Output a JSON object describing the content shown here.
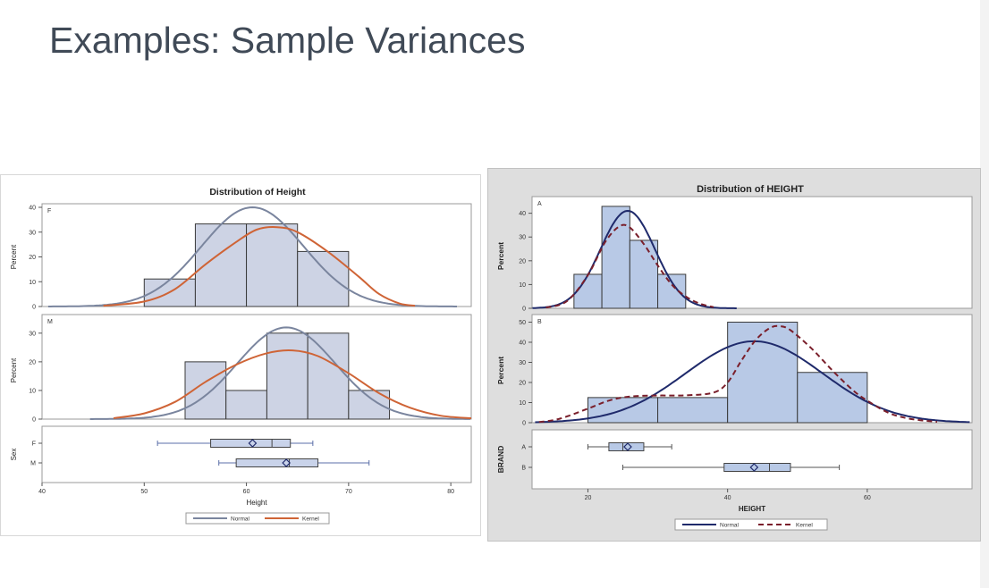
{
  "slide": {
    "title": "Examples: Sample Variances"
  },
  "chart_data": [
    {
      "type": "histogram",
      "title": "Distribution of Height",
      "xlabel": "Height",
      "xlim": [
        40,
        82
      ],
      "xticks": [
        40,
        50,
        60,
        70,
        80
      ],
      "class_label": "Sex",
      "panels": [
        {
          "group": "F",
          "ylabel": "Percent",
          "ylim": [
            0,
            40
          ],
          "yticks": [
            0,
            10,
            20,
            30,
            40
          ],
          "bins": [
            {
              "x0": 50,
              "x1": 55,
              "percent": 11.1
            },
            {
              "x0": 55,
              "x1": 60,
              "percent": 33.3
            },
            {
              "x0": 60,
              "x1": 65,
              "percent": 33.3
            },
            {
              "x0": 65,
              "x1": 70,
              "percent": 22.2
            }
          ],
          "normal": {
            "mean": 60.6,
            "sd": 5.0,
            "peak": 40
          },
          "kernel": [
            [
              46,
              0.3
            ],
            [
              50,
              2
            ],
            [
              53,
              7
            ],
            [
              56,
              17
            ],
            [
              59,
              26
            ],
            [
              61,
              31
            ],
            [
              63,
              32
            ],
            [
              65,
              30
            ],
            [
              68,
              22
            ],
            [
              71,
              12
            ],
            [
              73,
              5
            ],
            [
              75,
              1.2
            ],
            [
              76.5,
              0.3
            ]
          ]
        },
        {
          "group": "M",
          "ylabel": "Percent",
          "ylim": [
            0,
            34
          ],
          "yticks": [
            0,
            10,
            20,
            30
          ],
          "bins": [
            {
              "x0": 54,
              "x1": 58,
              "percent": 20
            },
            {
              "x0": 58,
              "x1": 62,
              "percent": 10
            },
            {
              "x0": 62,
              "x1": 66,
              "percent": 30
            },
            {
              "x0": 66,
              "x1": 70,
              "percent": 30
            },
            {
              "x0": 70,
              "x1": 74,
              "percent": 10
            }
          ],
          "normal": {
            "mean": 63.9,
            "sd": 4.8,
            "peak": 32
          },
          "kernel": [
            [
              47,
              0.3
            ],
            [
              50,
              2
            ],
            [
              53,
              6
            ],
            [
              56,
              13
            ],
            [
              59,
              19
            ],
            [
              62,
              23
            ],
            [
              64.5,
              24
            ],
            [
              67,
              22
            ],
            [
              70,
              16
            ],
            [
              73,
              9
            ],
            [
              76,
              4
            ],
            [
              79,
              1.2
            ],
            [
              82,
              0.3
            ]
          ]
        }
      ],
      "boxplots": [
        {
          "group": "F",
          "min": 51.3,
          "q1": 56.5,
          "median": 62.5,
          "q3": 64.3,
          "max": 66.5,
          "mean": 60.6
        },
        {
          "group": "M",
          "min": 57.3,
          "q1": 59.0,
          "median": 64.2,
          "q3": 67.0,
          "max": 72.0,
          "mean": 63.9
        }
      ],
      "legend": [
        {
          "name": "Normal",
          "color": "#7a859e"
        },
        {
          "name": "Kernel",
          "color": "#cf6436"
        }
      ],
      "colors": {
        "bar": "#cdd3e4",
        "bar_edge": "#3a3a3a",
        "normal": "#7a859e",
        "kernel": "#cf6436",
        "box": "#c9d3ea",
        "whisker": "#5b6fa8"
      }
    },
    {
      "type": "histogram",
      "title": "Distribution of HEIGHT",
      "xlabel": "HEIGHT",
      "xlim": [
        12,
        75
      ],
      "xticks": [
        20,
        40,
        60
      ],
      "class_label": "BRAND",
      "panels": [
        {
          "group": "A",
          "ylabel": "Percent",
          "ylim": [
            0,
            44
          ],
          "yticks": [
            0,
            10,
            20,
            30,
            40
          ],
          "bins": [
            {
              "x0": 18,
              "x1": 22,
              "percent": 14.3
            },
            {
              "x0": 22,
              "x1": 26,
              "percent": 42.9
            },
            {
              "x0": 26,
              "x1": 30,
              "percent": 28.6
            },
            {
              "x0": 30,
              "x1": 34,
              "percent": 14.3
            }
          ],
          "normal": {
            "mean": 25.7,
            "sd": 3.9,
            "peak": 41
          },
          "kernel": [
            [
              14,
              0.3
            ],
            [
              17,
              3
            ],
            [
              20,
              14
            ],
            [
              22.5,
              28
            ],
            [
              24.5,
              34.5
            ],
            [
              26,
              34
            ],
            [
              28,
              27
            ],
            [
              30,
              18
            ],
            [
              32,
              10
            ],
            [
              34,
              5
            ],
            [
              36,
              2
            ],
            [
              38,
              0.5
            ]
          ]
        },
        {
          "group": "B",
          "ylabel": "Percent",
          "ylim": [
            0,
            52
          ],
          "yticks": [
            0,
            10,
            20,
            30,
            40,
            50
          ],
          "bins": [
            {
              "x0": 20,
              "x1": 30,
              "percent": 12.5
            },
            {
              "x0": 30,
              "x1": 40,
              "percent": 12.5
            },
            {
              "x0": 40,
              "x1": 50,
              "percent": 50
            },
            {
              "x0": 50,
              "x1": 60,
              "percent": 25
            }
          ],
          "normal": {
            "mean": 43.8,
            "sd": 9.8,
            "peak": 40.5
          },
          "kernel": [
            [
              13,
              0.3
            ],
            [
              16,
              2
            ],
            [
              20,
              7
            ],
            [
              23,
              11
            ],
            [
              26,
              13
            ],
            [
              30,
              13.5
            ],
            [
              34,
              13.6
            ],
            [
              38,
              15
            ],
            [
              40,
              20
            ],
            [
              42,
              31
            ],
            [
              44,
              41
            ],
            [
              46,
              47
            ],
            [
              47.5,
              48
            ],
            [
              49,
              46
            ],
            [
              52,
              37
            ],
            [
              55,
              26
            ],
            [
              58,
              16
            ],
            [
              60,
              11
            ],
            [
              63,
              5
            ],
            [
              66,
              2
            ],
            [
              70,
              0.4
            ]
          ]
        }
      ],
      "boxplots": [
        {
          "group": "A",
          "min": 20,
          "q1": 23.0,
          "median": 25.0,
          "q3": 28.0,
          "max": 32,
          "mean": 25.7
        },
        {
          "group": "B",
          "min": 25,
          "q1": 39.5,
          "median": 46,
          "q3": 49.0,
          "max": 56,
          "mean": 43.8
        }
      ],
      "legend": [
        {
          "name": "Normal",
          "color": "#1f2a6b"
        },
        {
          "name": "Kernel",
          "color": "#7a1f2b"
        }
      ],
      "colors": {
        "bar": "#b8c9e6",
        "bar_edge": "#3a3a3a",
        "normal": "#1f2a6b",
        "kernel": "#7a1f2b",
        "box": "#b8c9e6",
        "whisker": "#555555"
      }
    }
  ]
}
